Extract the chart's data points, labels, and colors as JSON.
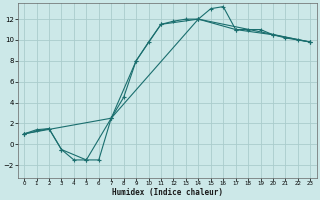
{
  "xlabel": "Humidex (Indice chaleur)",
  "bg_color": "#cce8e8",
  "grid_color": "#aacccc",
  "line_color": "#1a6e6e",
  "xlim": [
    -0.5,
    23.5
  ],
  "ylim": [
    -3.2,
    13.5
  ],
  "xticks": [
    0,
    1,
    2,
    3,
    4,
    5,
    6,
    7,
    8,
    9,
    10,
    11,
    12,
    13,
    14,
    15,
    16,
    17,
    18,
    19,
    20,
    21,
    22,
    23
  ],
  "yticks": [
    -2,
    0,
    2,
    4,
    6,
    8,
    10,
    12
  ],
  "curve1_x": [
    0,
    1,
    2,
    3,
    4,
    5,
    6,
    7,
    8,
    9,
    10,
    11,
    12,
    13,
    14,
    15,
    16,
    17,
    18,
    19,
    20,
    21,
    22,
    23
  ],
  "curve1_y": [
    1.0,
    1.4,
    1.5,
    -0.5,
    -1.5,
    -1.5,
    -1.5,
    2.5,
    4.5,
    8.0,
    9.8,
    11.5,
    11.8,
    12.0,
    12.0,
    13.0,
    13.2,
    11.0,
    11.0,
    11.0,
    10.5,
    10.2,
    10.0,
    9.8
  ],
  "curve2_x": [
    0,
    2,
    3,
    5,
    7,
    9,
    11,
    14,
    17,
    20,
    23
  ],
  "curve2_y": [
    1.0,
    1.5,
    -0.5,
    -1.5,
    2.5,
    8.0,
    11.5,
    12.0,
    11.0,
    10.5,
    9.8
  ],
  "curve3_x": [
    0,
    7,
    14,
    23
  ],
  "curve3_y": [
    1.0,
    2.5,
    12.0,
    9.8
  ]
}
